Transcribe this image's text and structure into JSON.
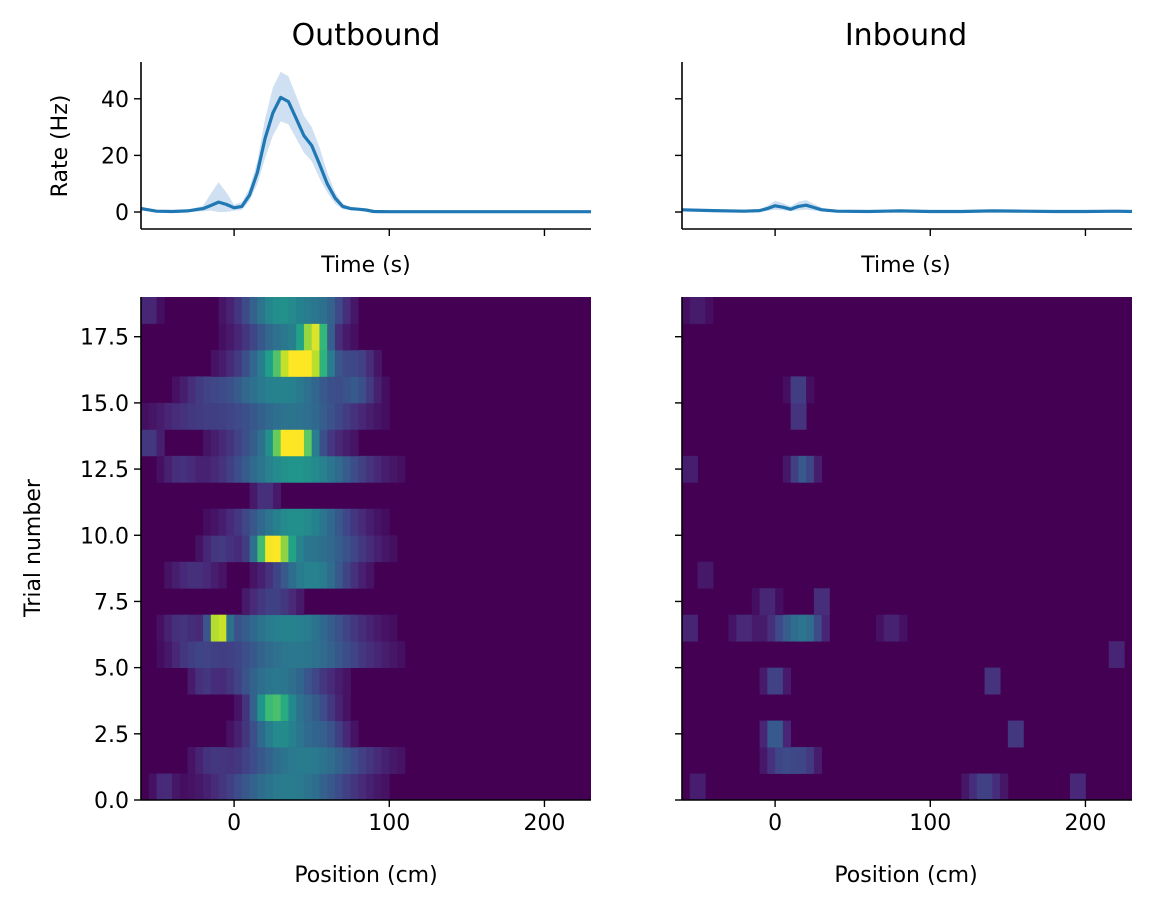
{
  "colors": {
    "line": "#1f77b4",
    "band": "#c6dbef",
    "heat_low": "#440154",
    "heat_high": "#fde725"
  },
  "chart_data": [
    {
      "id": "outbound_rate",
      "type": "line",
      "title": "Outbound",
      "xlabel": "Time (s)",
      "ylabel": "Rate (Hz)",
      "xlim": [
        -60,
        230
      ],
      "ylim": [
        -6,
        53
      ],
      "xticks": [
        0,
        100,
        200
      ],
      "xtick_labels_visible": false,
      "yticks": [
        0,
        20,
        40
      ],
      "ytick_labels": [
        "0",
        "20",
        "40"
      ],
      "grid": false,
      "series": [
        {
          "x": [
            -60,
            -50,
            -40,
            -30,
            -20,
            -15,
            -10,
            -5,
            0,
            5,
            10,
            15,
            20,
            25,
            30,
            35,
            40,
            45,
            50,
            55,
            60,
            65,
            70,
            75,
            80,
            85,
            90,
            100,
            120,
            150,
            180,
            210,
            230
          ],
          "y": [
            1.2,
            0.3,
            0.2,
            0.4,
            1.2,
            2.3,
            3.5,
            2.7,
            1.5,
            2.0,
            6.0,
            14.0,
            26.0,
            35.0,
            40.5,
            39.0,
            33.0,
            27.0,
            23.5,
            17.0,
            10.0,
            5.0,
            2.0,
            1.2,
            1.0,
            0.7,
            0.2,
            0.1,
            0.1,
            0.1,
            0.1,
            0.1,
            0.1
          ],
          "lower": [
            0.5,
            0.0,
            0.0,
            0.0,
            0.3,
            0.5,
            0.0,
            0.0,
            0.5,
            0.8,
            4.0,
            10.0,
            19.0,
            27.0,
            32.0,
            31.0,
            26.0,
            21.0,
            18.0,
            12.0,
            7.0,
            3.0,
            1.0,
            0.7,
            0.6,
            0.4,
            0.0,
            0.0,
            0.0,
            0.0,
            0.0,
            0.0,
            0.0
          ],
          "upper": [
            1.9,
            0.7,
            0.5,
            0.8,
            2.2,
            6.5,
            10.5,
            7.0,
            2.5,
            3.5,
            8.5,
            18.0,
            33.0,
            44.0,
            49.5,
            48.0,
            41.0,
            34.0,
            30.0,
            23.0,
            14.0,
            7.0,
            3.0,
            1.7,
            1.4,
            1.0,
            0.4,
            0.3,
            0.3,
            0.3,
            0.3,
            0.3,
            0.3
          ]
        }
      ]
    },
    {
      "id": "inbound_rate",
      "type": "line",
      "title": "Inbound",
      "xlabel": "Time (s)",
      "ylabel": "",
      "xlim": [
        -60,
        230
      ],
      "ylim": [
        -6,
        53
      ],
      "xticks": [
        0,
        100,
        200
      ],
      "xtick_labels_visible": false,
      "yticks": [
        0,
        20,
        40
      ],
      "ytick_labels_visible": false,
      "grid": false,
      "series": [
        {
          "x": [
            -60,
            -40,
            -20,
            -10,
            -5,
            0,
            5,
            10,
            15,
            20,
            25,
            30,
            40,
            60,
            80,
            100,
            120,
            140,
            160,
            180,
            200,
            220,
            230
          ],
          "y": [
            0.8,
            0.5,
            0.3,
            0.5,
            1.2,
            2.2,
            1.7,
            1.0,
            2.0,
            2.4,
            1.6,
            0.8,
            0.3,
            0.2,
            0.4,
            0.2,
            0.2,
            0.4,
            0.3,
            0.2,
            0.2,
            0.3,
            0.2
          ],
          "lower": [
            0.3,
            0.1,
            0.0,
            0.0,
            0.4,
            0.8,
            0.6,
            0.3,
            0.6,
            0.9,
            0.5,
            0.2,
            0.0,
            0.0,
            0.1,
            0.0,
            0.0,
            0.1,
            0.0,
            0.0,
            0.0,
            0.0,
            0.0
          ],
          "upper": [
            1.3,
            0.9,
            0.6,
            1.0,
            2.2,
            4.0,
            3.2,
            2.0,
            3.6,
            4.2,
            2.9,
            1.5,
            0.6,
            0.4,
            0.7,
            0.4,
            0.4,
            0.7,
            0.6,
            0.4,
            0.4,
            0.6,
            0.4
          ]
        }
      ]
    },
    {
      "id": "outbound_heatmap",
      "type": "heatmap",
      "xlabel": "Position (cm)",
      "ylabel": "Trial number",
      "xlim": [
        -60,
        230
      ],
      "ylim": [
        0,
        19
      ],
      "xticks": [
        0,
        100,
        200
      ],
      "xtick_labels": [
        "0",
        "100",
        "200"
      ],
      "yticks": [
        0,
        2.5,
        5,
        7.5,
        10,
        12.5,
        15,
        17.5
      ],
      "ytick_labels": [
        "0.0",
        "2.5",
        "5.0",
        "7.5",
        "10.0",
        "12.5",
        "15.0",
        "17.5"
      ],
      "bin_width": 5,
      "cmap": "viridis",
      "rows": [
        {
          "trial": 0,
          "blobs": [
            [
              -45,
              5,
              0.12
            ],
            [
              35,
              30,
              0.42
            ]
          ]
        },
        {
          "trial": 1,
          "blobs": [
            [
              45,
              30,
              0.42
            ],
            [
              -15,
              8,
              0.1
            ]
          ]
        },
        {
          "trial": 2,
          "blobs": [
            [
              30,
              15,
              0.48
            ],
            [
              60,
              10,
              0.22
            ]
          ]
        },
        {
          "trial": 3,
          "blobs": [
            [
              25,
              10,
              0.68
            ],
            [
              50,
              12,
              0.28
            ]
          ]
        },
        {
          "trial": 4,
          "blobs": [
            [
              28,
              22,
              0.4
            ],
            [
              -20,
              6,
              0.12
            ]
          ]
        },
        {
          "trial": 5,
          "blobs": [
            [
              40,
              32,
              0.4
            ],
            [
              -25,
              12,
              0.15
            ]
          ]
        },
        {
          "trial": 6,
          "blobs": [
            [
              -10,
              4,
              0.92
            ],
            [
              35,
              30,
              0.45
            ],
            [
              -35,
              8,
              0.12
            ]
          ]
        },
        {
          "trial": 7,
          "blobs": [
            [
              25,
              12,
              0.2
            ]
          ]
        },
        {
          "trial": 8,
          "blobs": [
            [
              50,
              18,
              0.45
            ],
            [
              -25,
              12,
              0.14
            ]
          ]
        },
        {
          "trial": 9,
          "blobs": [
            [
              25,
              8,
              0.82
            ],
            [
              50,
              25,
              0.38
            ],
            [
              -10,
              8,
              0.15
            ]
          ]
        },
        {
          "trial": 10,
          "blobs": [
            [
              40,
              25,
              0.5
            ]
          ]
        },
        {
          "trial": 11,
          "blobs": [
            [
              20,
              6,
              0.15
            ]
          ]
        },
        {
          "trial": 12,
          "blobs": [
            [
              40,
              30,
              0.52
            ],
            [
              -35,
              8,
              0.12
            ]
          ]
        },
        {
          "trial": 13,
          "blobs": [
            [
              38,
              8,
              0.92
            ],
            [
              30,
              24,
              0.38
            ],
            [
              -55,
              6,
              0.18
            ]
          ]
        },
        {
          "trial": 14,
          "blobs": [
            [
              38,
              28,
              0.38
            ],
            [
              -25,
              20,
              0.14
            ]
          ]
        },
        {
          "trial": 15,
          "blobs": [
            [
              30,
              28,
              0.45
            ],
            [
              80,
              8,
              0.18
            ],
            [
              -20,
              10,
              0.1
            ]
          ]
        },
        {
          "trial": 16,
          "blobs": [
            [
              45,
              12,
              0.8
            ],
            [
              30,
              20,
              0.45
            ],
            [
              80,
              8,
              0.18
            ]
          ]
        },
        {
          "trial": 17,
          "blobs": [
            [
              52,
              6,
              0.68
            ],
            [
              35,
              20,
              0.4
            ]
          ]
        },
        {
          "trial": 18,
          "blobs": [
            [
              30,
              18,
              0.5
            ],
            [
              60,
              10,
              0.22
            ],
            [
              -55,
              5,
              0.12
            ]
          ]
        }
      ]
    },
    {
      "id": "inbound_heatmap",
      "type": "heatmap",
      "xlabel": "Position (cm)",
      "ylabel": "",
      "xlim": [
        -60,
        230
      ],
      "ylim": [
        0,
        19
      ],
      "xticks": [
        0,
        100,
        200
      ],
      "xtick_labels": [
        "0",
        "100",
        "200"
      ],
      "yticks": [
        0,
        2.5,
        5,
        7.5,
        10,
        12.5,
        15,
        17.5
      ],
      "ytick_labels_visible": false,
      "bin_width": 5,
      "cmap": "viridis",
      "rows": [
        {
          "trial": 0,
          "blobs": [
            [
              -50,
              4,
              0.1
            ],
            [
              135,
              8,
              0.2
            ],
            [
              195,
              4,
              0.14
            ]
          ]
        },
        {
          "trial": 1,
          "blobs": [
            [
              5,
              8,
              0.22
            ],
            [
              20,
              6,
              0.16
            ]
          ]
        },
        {
          "trial": 2,
          "blobs": [
            [
              0,
              5,
              0.32
            ],
            [
              155,
              4,
              0.2
            ]
          ]
        },
        {
          "trial": 4,
          "blobs": [
            [
              0,
              5,
              0.22
            ],
            [
              140,
              4,
              0.18
            ]
          ]
        },
        {
          "trial": 5,
          "blobs": [
            [
              220,
              4,
              0.12
            ]
          ]
        },
        {
          "trial": 6,
          "blobs": [
            [
              20,
              8,
              0.35
            ],
            [
              5,
              8,
              0.2
            ],
            [
              -20,
              6,
              0.12
            ],
            [
              -55,
              4,
              0.12
            ],
            [
              75,
              6,
              0.1
            ]
          ]
        },
        {
          "trial": 7,
          "blobs": [
            [
              -5,
              5,
              0.12
            ],
            [
              30,
              4,
              0.16
            ]
          ]
        },
        {
          "trial": 8,
          "blobs": [
            [
              -45,
              4,
              0.08
            ]
          ]
        },
        {
          "trial": 12,
          "blobs": [
            [
              18,
              6,
              0.28
            ],
            [
              -55,
              4,
              0.1
            ]
          ]
        },
        {
          "trial": 14,
          "blobs": [
            [
              15,
              4,
              0.18
            ]
          ]
        },
        {
          "trial": 15,
          "blobs": [
            [
              15,
              4,
              0.22
            ]
          ]
        },
        {
          "trial": 18,
          "blobs": [
            [
              -50,
              6,
              0.08
            ]
          ]
        }
      ]
    }
  ]
}
